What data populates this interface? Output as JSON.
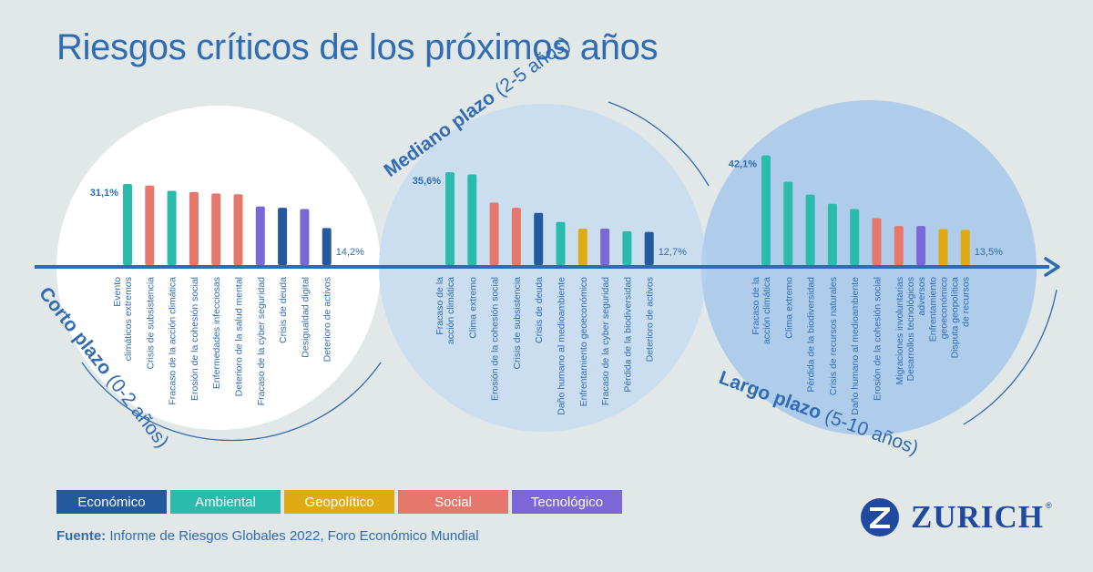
{
  "title": "Riesgos críticos de los próximos años",
  "source": {
    "label": "Fuente:",
    "text": "Informe de Riesgos Globales 2022, Foro Económico Mundial"
  },
  "brand": {
    "name": "ZURICH",
    "registered": "®",
    "logo_icon": "zurich-z-logo-icon"
  },
  "colors": {
    "Económico": "#245a9d",
    "Ambiental": "#2bbbad",
    "Geopolítico": "#e0aa12",
    "Social": "#e5776c",
    "Tecnológico": "#7b68d6",
    "axis": "#2f6cb3",
    "text": "#2f6cb3"
  },
  "legend": [
    {
      "label": "Económico",
      "category": "Económico"
    },
    {
      "label": "Ambiental",
      "category": "Ambiental"
    },
    {
      "label": "Geopolítico",
      "category": "Geopolítico"
    },
    {
      "label": "Social",
      "category": "Social"
    },
    {
      "label": "Tecnológico",
      "category": "Tecnológico"
    }
  ],
  "chart_data": [
    {
      "type": "bar",
      "period_bold": "Corto plazo",
      "period_range": "(0-2 años)",
      "max_label": "31,1%",
      "min_label": "14,2%",
      "values": [
        31.1,
        30.5,
        28.5,
        28.0,
        27.5,
        27.2,
        22.5,
        22.0,
        21.5,
        14.2
      ],
      "categories": [
        {
          "lines": [
            "Evento",
            "climáticos extremos"
          ],
          "category": "Ambiental"
        },
        {
          "lines": [
            "Crisis de subsistencia"
          ],
          "category": "Social"
        },
        {
          "lines": [
            "Fracaso de la acción climática"
          ],
          "category": "Ambiental"
        },
        {
          "lines": [
            "Erosión de la cohesión social"
          ],
          "category": "Social"
        },
        {
          "lines": [
            "Enfermedades infecciosas"
          ],
          "category": "Social"
        },
        {
          "lines": [
            "Deterioro de la salud mental"
          ],
          "category": "Social"
        },
        {
          "lines": [
            "Fracaso de la cyber seguridad"
          ],
          "category": "Tecnológico"
        },
        {
          "lines": [
            "Crisis de deuda"
          ],
          "category": "Económico"
        },
        {
          "lines": [
            "Desigualdad digital"
          ],
          "category": "Tecnológico"
        },
        {
          "lines": [
            "Deterioro de activos"
          ],
          "category": "Económico"
        }
      ]
    },
    {
      "type": "bar",
      "period_bold": "Mediano plazo",
      "period_range": "(2-5 años)",
      "max_label": "35,6%",
      "min_label": "12,7%",
      "values": [
        35.6,
        34.8,
        24.0,
        22.0,
        20.0,
        16.5,
        14.0,
        14.0,
        13.0,
        12.7
      ],
      "categories": [
        {
          "lines": [
            "Fracaso de la",
            "acción climática"
          ],
          "category": "Ambiental"
        },
        {
          "lines": [
            "Clima extremo"
          ],
          "category": "Ambiental"
        },
        {
          "lines": [
            "Erosión de la cohesión social"
          ],
          "category": "Social"
        },
        {
          "lines": [
            "Crisis de subsistencia"
          ],
          "category": "Social"
        },
        {
          "lines": [
            "Crisis de deuda"
          ],
          "category": "Económico"
        },
        {
          "lines": [
            "Daño humano al medioambiente"
          ],
          "category": "Ambiental"
        },
        {
          "lines": [
            "Enfrentamiento geoeconómico"
          ],
          "category": "Geopolítico"
        },
        {
          "lines": [
            "Fracaso de la cyber seguridad"
          ],
          "category": "Tecnológico"
        },
        {
          "lines": [
            "Pérdida de la biodiversidad"
          ],
          "category": "Ambiental"
        },
        {
          "lines": [
            "Deterioro de activos"
          ],
          "category": "Económico"
        }
      ]
    },
    {
      "type": "bar",
      "period_bold": "Largo plazo",
      "period_range": "(5-10 años)",
      "max_label": "42,1%",
      "min_label": "13,5%",
      "values": [
        42.1,
        32.0,
        27.0,
        23.5,
        21.5,
        18.0,
        15.0,
        15.0,
        13.8,
        13.5
      ],
      "categories": [
        {
          "lines": [
            "Fracaso de la",
            "acción climática"
          ],
          "category": "Ambiental"
        },
        {
          "lines": [
            "Clima extremo"
          ],
          "category": "Ambiental"
        },
        {
          "lines": [
            "Pérdida de la biodiversidad"
          ],
          "category": "Ambiental"
        },
        {
          "lines": [
            "Crisis de recursos naturales"
          ],
          "category": "Ambiental"
        },
        {
          "lines": [
            "Daño humano al medioambiente"
          ],
          "category": "Ambiental"
        },
        {
          "lines": [
            "Erosión de la cohesión social"
          ],
          "category": "Social"
        },
        {
          "lines": [
            "Migraciones involuntarias"
          ],
          "category": "Social"
        },
        {
          "lines": [
            "Desarrollos tecnológicos",
            "adversos"
          ],
          "category": "Tecnológico"
        },
        {
          "lines": [
            "Enfrentamiento",
            "geoeconómico"
          ],
          "category": "Geopolítico"
        },
        {
          "lines": [
            "Disputa geopolítica",
            "de recursos"
          ],
          "category": "Geopolítico"
        }
      ]
    }
  ]
}
